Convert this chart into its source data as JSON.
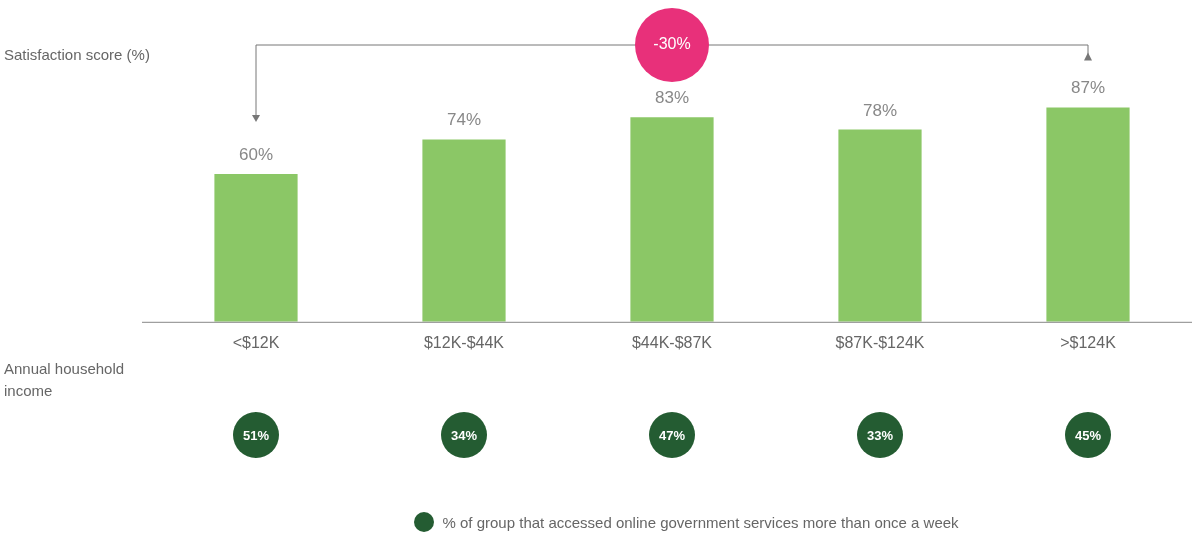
{
  "chart_data": [
    {
      "type": "bar",
      "ylabel": "Satisfaction score (%)",
      "xlabel": "Annual household income",
      "categories": [
        "<$12K",
        "$12K-$44K",
        "$44K-$87K",
        "$87K-$124K",
        ">$124K"
      ],
      "series": [
        {
          "color": "#8bc766",
          "values": [
            60,
            74,
            83,
            78,
            87
          ],
          "value_labels": [
            "60%",
            "74%",
            "83%",
            "78%",
            "87%"
          ]
        }
      ],
      "annotations": [
        "-30%"
      ],
      "grid": false
    },
    {
      "type": "other",
      "legend": "bottom",
      "series": [
        {
          "name": "% of group that accessed online government services more than once a week",
          "color": "#245c32",
          "values": [
            51,
            34,
            47,
            33,
            45
          ],
          "value_labels": [
            "51%",
            "34%",
            "47%",
            "33%",
            "45%"
          ]
        }
      ]
    }
  ]
}
